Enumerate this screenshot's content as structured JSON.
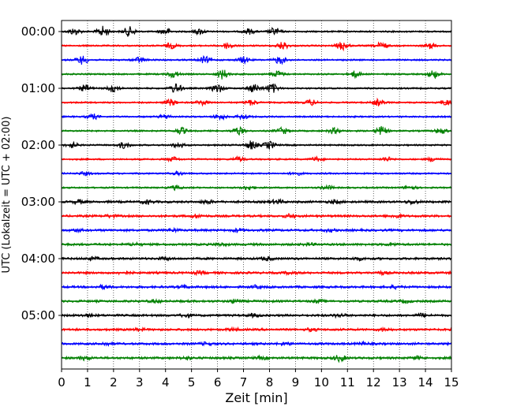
{
  "chart_data": {
    "type": "line",
    "title": "",
    "xlabel": "Zeit  [min]",
    "ylabel": "UTC (Lokalzeit = UTC + 02:00)",
    "xlim": [
      0,
      15
    ],
    "xticks": [
      0,
      1,
      2,
      3,
      4,
      5,
      6,
      7,
      8,
      9,
      10,
      11,
      12,
      13,
      14,
      15
    ],
    "yticks": [
      "00:00",
      "01:00",
      "02:00",
      "03:00",
      "04:00",
      "05:00"
    ],
    "grid": "vertical dotted",
    "trace_minutes_per_line": 15,
    "colors_cycle": [
      "#000000",
      "#ff0000",
      "#0000ff",
      "#008000"
    ],
    "traces": [
      {
        "start": "00:00",
        "color": "#000000",
        "bursts": [
          [
            0.5,
            0.6
          ],
          [
            1.6,
            1.0
          ],
          [
            2.6,
            0.9
          ],
          [
            4.0,
            0.6
          ],
          [
            5.3,
            0.5
          ],
          [
            7.2,
            0.5
          ],
          [
            8.2,
            0.7
          ]
        ]
      },
      {
        "start": "00:15",
        "color": "#ff0000",
        "bursts": [
          [
            4.2,
            0.5
          ],
          [
            6.4,
            0.6
          ],
          [
            8.5,
            0.7
          ],
          [
            10.8,
            0.8
          ],
          [
            12.3,
            0.6
          ],
          [
            14.2,
            0.5
          ]
        ]
      },
      {
        "start": "00:30",
        "color": "#0000ff",
        "bursts": [
          [
            0.8,
            0.8
          ],
          [
            3.0,
            0.5
          ],
          [
            5.5,
            0.6
          ],
          [
            7.0,
            0.6
          ],
          [
            8.4,
            0.7
          ]
        ]
      },
      {
        "start": "00:45",
        "color": "#008000",
        "bursts": [
          [
            4.3,
            0.6
          ],
          [
            6.2,
            0.9
          ],
          [
            8.3,
            0.6
          ],
          [
            11.3,
            0.6
          ],
          [
            14.3,
            0.7
          ]
        ]
      },
      {
        "start": "01:00",
        "color": "#000000",
        "bursts": [
          [
            0.9,
            0.6
          ],
          [
            2.0,
            0.7
          ],
          [
            4.4,
            0.9
          ],
          [
            6.0,
            0.8
          ],
          [
            7.4,
            0.8
          ],
          [
            8.1,
            0.9
          ]
        ]
      },
      {
        "start": "01:15",
        "color": "#ff0000",
        "bursts": [
          [
            4.2,
            0.6
          ],
          [
            5.4,
            0.5
          ],
          [
            7.3,
            0.5
          ],
          [
            9.6,
            0.5
          ],
          [
            12.2,
            0.6
          ],
          [
            14.8,
            0.5
          ]
        ]
      },
      {
        "start": "01:30",
        "color": "#0000ff",
        "bursts": [
          [
            1.2,
            0.5
          ],
          [
            4.0,
            0.4
          ],
          [
            6.1,
            0.5
          ],
          [
            7.0,
            0.5
          ]
        ]
      },
      {
        "start": "01:45",
        "color": "#008000",
        "bursts": [
          [
            4.6,
            0.6
          ],
          [
            6.8,
            0.7
          ],
          [
            8.5,
            0.6
          ],
          [
            10.5,
            0.5
          ],
          [
            12.3,
            0.8
          ],
          [
            14.6,
            0.5
          ]
        ]
      },
      {
        "start": "02:00",
        "color": "#000000",
        "bursts": [
          [
            0.4,
            0.5
          ],
          [
            2.4,
            0.6
          ],
          [
            4.5,
            0.5
          ],
          [
            7.3,
            0.8
          ],
          [
            8.0,
            0.7
          ]
        ]
      },
      {
        "start": "02:15",
        "color": "#ff0000",
        "bursts": [
          [
            4.3,
            0.4
          ],
          [
            6.8,
            0.4
          ],
          [
            9.8,
            0.4
          ],
          [
            12.5,
            0.4
          ],
          [
            14.3,
            0.4
          ]
        ]
      },
      {
        "start": "02:30",
        "color": "#0000ff",
        "bursts": [
          [
            0.9,
            0.3
          ],
          [
            4.5,
            0.3
          ],
          [
            9.0,
            0.3
          ]
        ]
      },
      {
        "start": "02:45",
        "color": "#008000",
        "bursts": [
          [
            4.4,
            0.4
          ],
          [
            7.2,
            0.4
          ],
          [
            10.2,
            0.4
          ],
          [
            13.4,
            0.4
          ]
        ]
      },
      {
        "start": "03:00",
        "color": "#000000",
        "bursts": [
          [
            0.7,
            0.4
          ],
          [
            3.3,
            0.4
          ],
          [
            5.6,
            0.4
          ],
          [
            8.3,
            0.5
          ],
          [
            10.5,
            0.4
          ],
          [
            13.5,
            0.4
          ]
        ]
      },
      {
        "start": "03:15",
        "color": "#ff0000",
        "bursts": [
          [
            1.9,
            0.3
          ],
          [
            5.2,
            0.4
          ],
          [
            8.8,
            0.4
          ],
          [
            12.9,
            0.4
          ]
        ]
      },
      {
        "start": "03:30",
        "color": "#0000ff",
        "bursts": [
          [
            0.6,
            0.3
          ],
          [
            4.3,
            0.3
          ],
          [
            6.8,
            0.4
          ],
          [
            10.3,
            0.3
          ]
        ]
      },
      {
        "start": "03:45",
        "color": "#008000",
        "bursts": [
          [
            2.8,
            0.3
          ],
          [
            6.1,
            0.3
          ],
          [
            9.5,
            0.3
          ],
          [
            12.7,
            0.3
          ]
        ]
      },
      {
        "start": "04:00",
        "color": "#000000",
        "bursts": [
          [
            1.2,
            0.3
          ],
          [
            4.0,
            0.3
          ],
          [
            7.9,
            0.4
          ],
          [
            11.4,
            0.3
          ]
        ]
      },
      {
        "start": "04:15",
        "color": "#ff0000",
        "bursts": [
          [
            2.4,
            0.3
          ],
          [
            5.3,
            0.3
          ],
          [
            8.8,
            0.3
          ],
          [
            12.3,
            0.3
          ]
        ]
      },
      {
        "start": "04:30",
        "color": "#0000ff",
        "bursts": [
          [
            1.6,
            0.4
          ],
          [
            4.7,
            0.3
          ],
          [
            7.5,
            0.3
          ],
          [
            12.8,
            0.3
          ]
        ]
      },
      {
        "start": "04:45",
        "color": "#008000",
        "bursts": [
          [
            3.6,
            0.3
          ],
          [
            6.7,
            0.4
          ],
          [
            9.9,
            0.3
          ],
          [
            13.2,
            0.3
          ]
        ]
      },
      {
        "start": "05:00",
        "color": "#000000",
        "bursts": [
          [
            1.0,
            0.3
          ],
          [
            4.8,
            0.4
          ],
          [
            7.4,
            0.3
          ],
          [
            10.7,
            0.4
          ],
          [
            13.9,
            0.4
          ]
        ]
      },
      {
        "start": "05:15",
        "color": "#ff0000",
        "bursts": [
          [
            3.0,
            0.3
          ],
          [
            6.6,
            0.3
          ],
          [
            9.6,
            0.3
          ],
          [
            12.4,
            0.3
          ]
        ]
      },
      {
        "start": "05:30",
        "color": "#0000ff",
        "bursts": [
          [
            1.7,
            0.3
          ],
          [
            5.6,
            0.3
          ],
          [
            8.6,
            0.3
          ],
          [
            11.6,
            0.3
          ]
        ]
      },
      {
        "start": "05:45",
        "color": "#008000",
        "bursts": [
          [
            0.9,
            0.4
          ],
          [
            4.8,
            0.3
          ],
          [
            7.7,
            0.3
          ],
          [
            10.7,
            0.7
          ],
          [
            13.7,
            0.3
          ]
        ]
      }
    ]
  }
}
